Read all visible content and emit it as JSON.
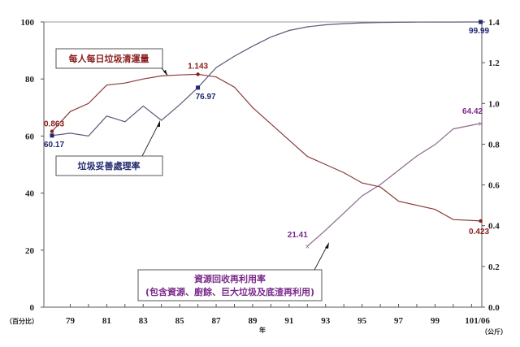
{
  "chart_data": {
    "type": "line",
    "title": "",
    "xlabel": "年",
    "ylabel_left": "（百分比）",
    "ylabel_right": "（公斤）",
    "x_tick_labels": [
      "79",
      "81",
      "83",
      "85",
      "87",
      "89",
      "91",
      "93",
      "95",
      "97",
      "99",
      "101/06"
    ],
    "y_left": {
      "ylim": [
        0,
        100
      ],
      "ticks": [
        "0",
        "20",
        "40",
        "60",
        "80",
        "100"
      ]
    },
    "y_right": {
      "ylim": [
        0,
        1.4
      ],
      "ticks": [
        "0.0",
        "0.2",
        "0.4",
        "0.6",
        "0.8",
        "1.0",
        "1.2",
        "1.4"
      ]
    },
    "grid": false,
    "series": [
      {
        "name": "每人每日垃圾清運量",
        "axis": "right",
        "unit": "公斤",
        "color": "#8b3a3a",
        "label_color": "#8b2020",
        "x": [
          78,
          79,
          80,
          81,
          82,
          83,
          84,
          85,
          86,
          87,
          88,
          89,
          90,
          91,
          92,
          93,
          94,
          95,
          96,
          97,
          98,
          99,
          100,
          101.5
        ],
        "values": [
          0.863,
          0.96,
          1.0,
          1.09,
          1.1,
          1.12,
          1.135,
          1.14,
          1.143,
          1.13,
          1.08,
          0.98,
          0.9,
          0.82,
          0.74,
          0.7,
          0.66,
          0.61,
          0.59,
          0.52,
          0.5,
          0.48,
          0.43,
          0.423
        ],
        "annotations": [
          {
            "x": 78,
            "value": 0.863,
            "text": "0.863"
          },
          {
            "x": 86,
            "value": 1.143,
            "text": "1.143"
          },
          {
            "x": 101.5,
            "value": 0.423,
            "text": "0.423"
          }
        ]
      },
      {
        "name": "垃圾妥善處理率",
        "axis": "left",
        "unit": "%",
        "color": "#5a5a7a",
        "label_color": "#1f2a6e",
        "x": [
          78,
          79,
          80,
          81,
          82,
          83,
          84,
          85,
          86,
          87,
          88,
          89,
          90,
          91,
          92,
          93,
          94,
          95,
          96,
          97,
          98,
          99,
          100,
          101.5
        ],
        "values": [
          60.17,
          61,
          60,
          67,
          65,
          70.5,
          65.5,
          71,
          76.97,
          84,
          88,
          91.5,
          94.7,
          97,
          98.3,
          99,
          99.4,
          99.7,
          99.8,
          99.9,
          99.95,
          99.97,
          99.98,
          99.99
        ],
        "annotations": [
          {
            "x": 78,
            "value": 60.17,
            "text": "60.17"
          },
          {
            "x": 86,
            "value": 76.97,
            "text": "76.97"
          },
          {
            "x": 101.5,
            "value": 99.99,
            "text": "99.99"
          }
        ]
      },
      {
        "name": "資源回收再利用率（包含資源、廚餘、巨大垃圾及底渣再利用）",
        "axis": "left",
        "unit": "%",
        "color": "#8a6a8a",
        "label_color": "#7a2a8a",
        "x": [
          92,
          93,
          94,
          95,
          96,
          97,
          98,
          99,
          100,
          101.5
        ],
        "values": [
          21.41,
          27,
          33,
          39,
          43,
          48,
          53,
          57,
          62.5,
          64.42
        ],
        "annotations": [
          {
            "x": 92,
            "value": 21.41,
            "text": "21.41"
          },
          {
            "x": 101.5,
            "value": 64.42,
            "text": "64.42"
          }
        ]
      }
    ],
    "callouts": [
      {
        "id": "per-capita",
        "line1": "每人每日垃圾清運量",
        "line2": ""
      },
      {
        "id": "treatment",
        "line1": "垃圾妥善處理率",
        "line2": ""
      },
      {
        "id": "recycling",
        "line1": "資源回收再利用率",
        "line2": "(包含資源、廚餘、巨大垃圾及底渣再利用)"
      }
    ]
  }
}
